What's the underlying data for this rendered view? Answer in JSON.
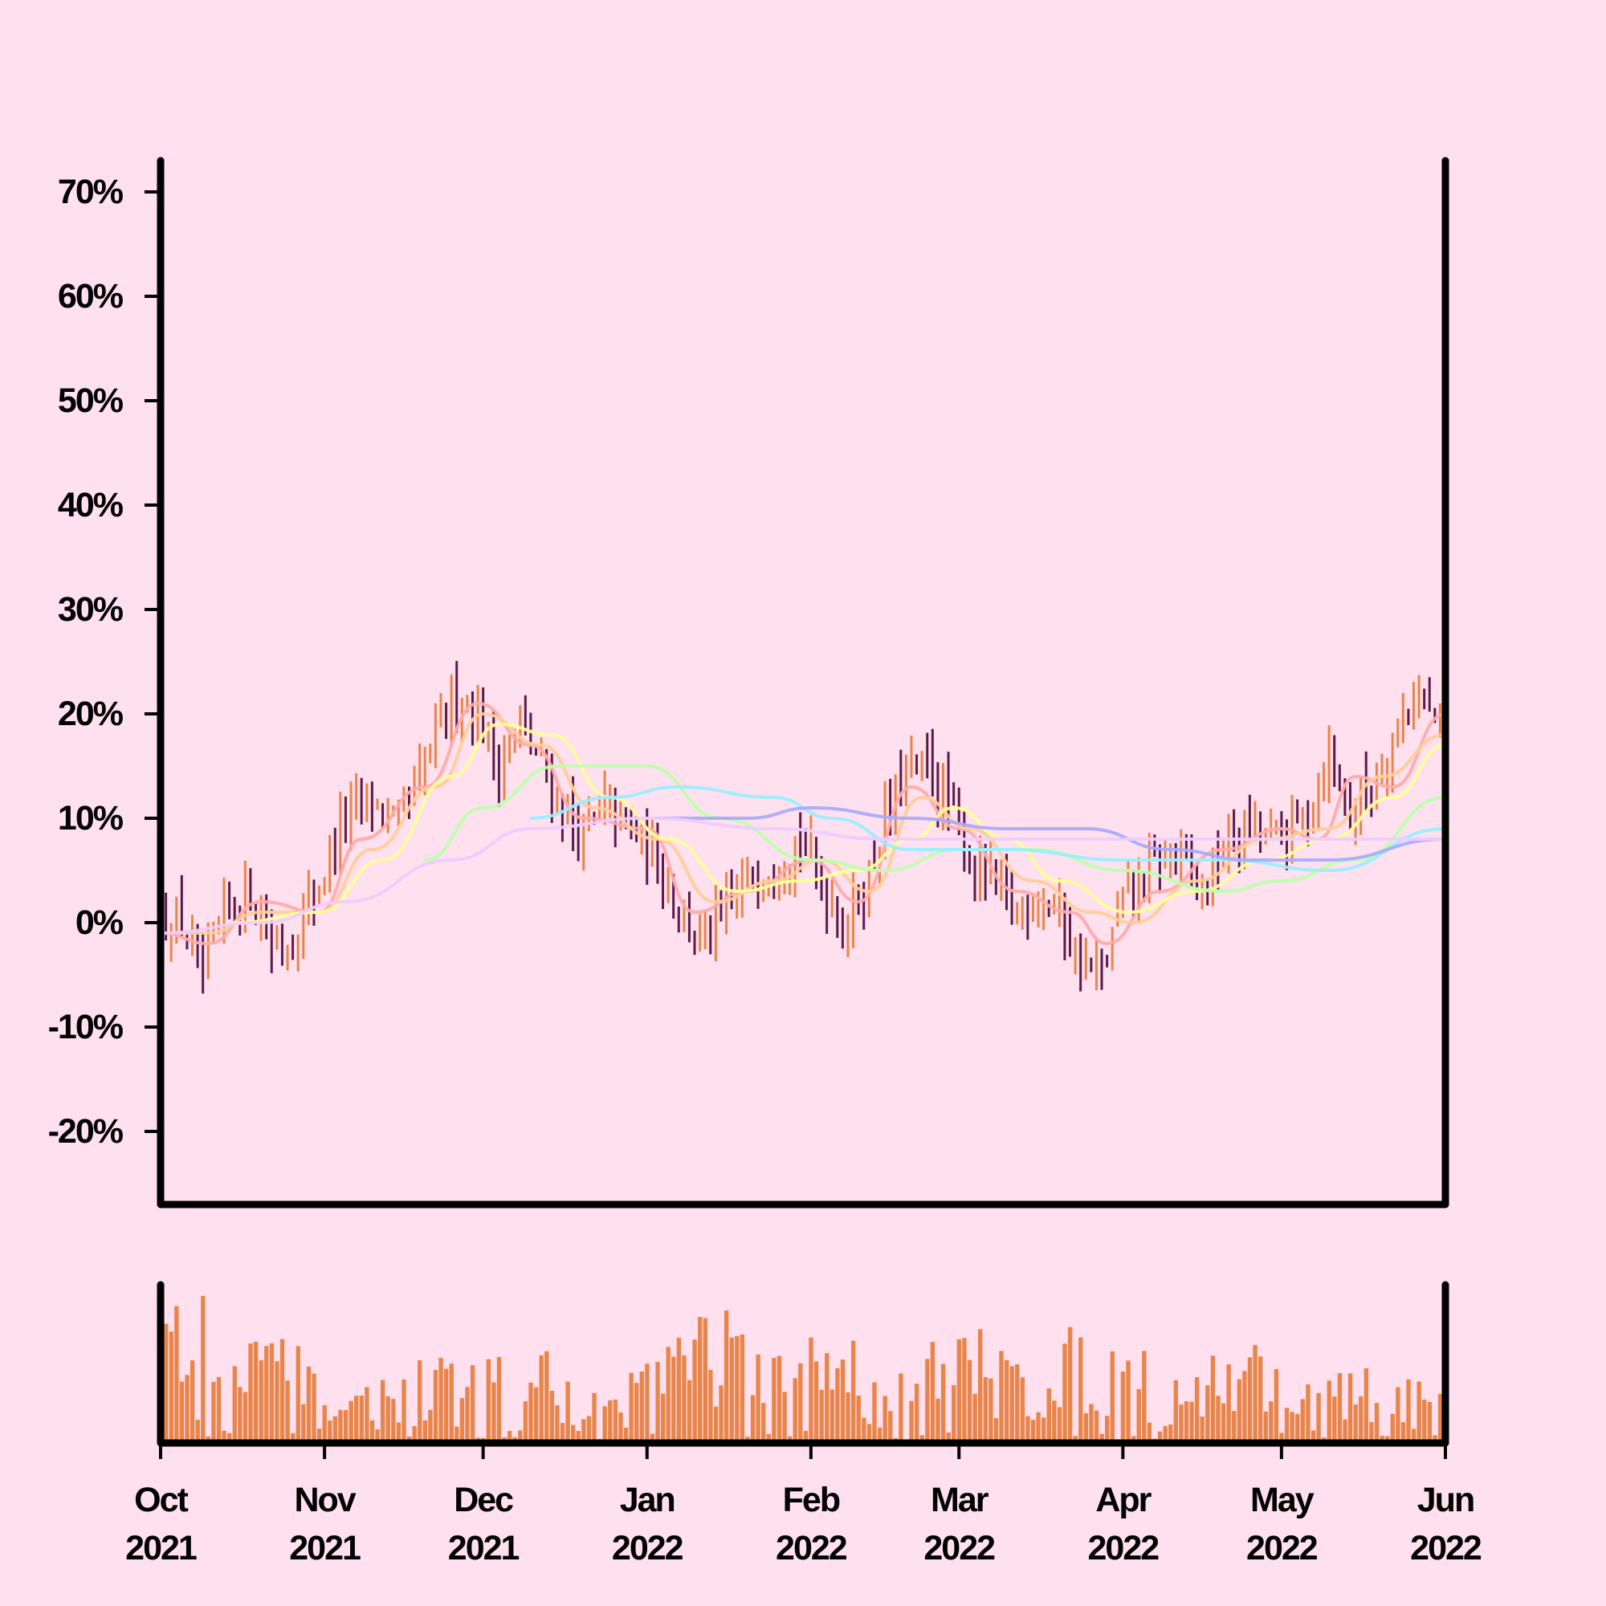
{
  "chart_data": [
    {
      "type": "ohlc",
      "title": "",
      "xlabel": "",
      "ylabel": "",
      "y_unit": "percent",
      "ylim": [
        -27,
        73
      ],
      "xlim": [
        "2021-10-01",
        "2022-06-01"
      ],
      "yticks": [
        {
          "value": 70,
          "label": "70%"
        },
        {
          "value": 60,
          "label": "60%"
        },
        {
          "value": 50,
          "label": "50%"
        },
        {
          "value": 40,
          "label": "40%"
        },
        {
          "value": 30,
          "label": "30%"
        },
        {
          "value": 20,
          "label": "20%"
        },
        {
          "value": 10,
          "label": "10%"
        },
        {
          "value": 0,
          "label": "0%"
        },
        {
          "value": -10,
          "label": "-10%"
        },
        {
          "value": -20,
          "label": "-20%"
        }
      ],
      "xticks": [
        {
          "date": "2021-10-01",
          "month": "Oct",
          "year": "2021"
        },
        {
          "date": "2021-11-01",
          "month": "Nov",
          "year": "2021"
        },
        {
          "date": "2021-12-01",
          "month": "Dec",
          "year": "2021"
        },
        {
          "date": "2022-01-01",
          "month": "Jan",
          "year": "2022"
        },
        {
          "date": "2022-02-01",
          "month": "Feb",
          "year": "2022"
        },
        {
          "date": "2022-03-01",
          "month": "Mar",
          "year": "2022"
        },
        {
          "date": "2022-04-01",
          "month": "Apr",
          "year": "2022"
        },
        {
          "date": "2022-05-01",
          "month": "May",
          "year": "2022"
        },
        {
          "date": "2022-06-01",
          "month": "Jun",
          "year": "2022"
        }
      ],
      "grid": false,
      "legend": "none",
      "colors": {
        "up": "#e8854a",
        "down": "#5c1a4a",
        "axis": "#000000"
      },
      "price_anchors": [
        [
          "2021-10-01",
          0
        ],
        [
          "2021-10-05",
          0
        ],
        [
          "2021-10-09",
          -6
        ],
        [
          "2021-10-13",
          1
        ],
        [
          "2021-10-18",
          3
        ],
        [
          "2021-10-22",
          -2
        ],
        [
          "2021-10-26",
          -2
        ],
        [
          "2021-10-31",
          4
        ],
        [
          "2021-11-05",
          10
        ],
        [
          "2021-11-10",
          12
        ],
        [
          "2021-11-14",
          9
        ],
        [
          "2021-11-18",
          12
        ],
        [
          "2021-11-22",
          18
        ],
        [
          "2021-11-26",
          22
        ],
        [
          "2021-11-30",
          20
        ],
        [
          "2021-12-04",
          15
        ],
        [
          "2021-12-08",
          19
        ],
        [
          "2021-12-12",
          15
        ],
        [
          "2021-12-16",
          11
        ],
        [
          "2021-12-20",
          8
        ],
        [
          "2021-12-24",
          11
        ],
        [
          "2021-12-29",
          9
        ],
        [
          "2022-01-03",
          6
        ],
        [
          "2022-01-07",
          2
        ],
        [
          "2022-01-11",
          -2
        ],
        [
          "2022-01-15",
          0
        ],
        [
          "2022-01-20",
          4
        ],
        [
          "2022-01-25",
          6
        ],
        [
          "2022-01-30",
          8
        ],
        [
          "2022-02-03",
          4
        ],
        [
          "2022-02-07",
          0
        ],
        [
          "2022-02-11",
          3
        ],
        [
          "2022-02-15",
          10
        ],
        [
          "2022-02-19",
          14
        ],
        [
          "2022-02-23",
          15
        ],
        [
          "2022-02-27",
          11
        ],
        [
          "2022-03-03",
          6
        ],
        [
          "2022-03-07",
          4
        ],
        [
          "2022-03-12",
          1
        ],
        [
          "2022-03-16",
          3
        ],
        [
          "2022-03-20",
          1
        ],
        [
          "2022-03-24",
          -4
        ],
        [
          "2022-03-28",
          -5
        ],
        [
          "2022-04-01",
          2
        ],
        [
          "2022-04-06",
          5
        ],
        [
          "2022-04-11",
          7
        ],
        [
          "2022-04-16",
          3
        ],
        [
          "2022-04-21",
          8
        ],
        [
          "2022-04-26",
          9
        ],
        [
          "2022-05-01",
          8
        ],
        [
          "2022-05-06",
          11
        ],
        [
          "2022-05-10",
          16
        ],
        [
          "2022-05-14",
          11
        ],
        [
          "2022-05-18",
          13
        ],
        [
          "2022-05-22",
          18
        ],
        [
          "2022-05-26",
          22
        ],
        [
          "2022-06-01",
          18
        ]
      ],
      "moving_averages": [
        {
          "color": "#ffaaaa",
          "points": [
            [
              "2021-10-01",
              -1
            ],
            [
              "2021-10-10",
              -2
            ],
            [
              "2021-10-20",
              2
            ],
            [
              "2021-10-31",
              1
            ],
            [
              "2021-11-08",
              8
            ],
            [
              "2021-11-20",
              13
            ],
            [
              "2021-11-30",
              21
            ],
            [
              "2021-12-10",
              17
            ],
            [
              "2021-12-20",
              10
            ],
            [
              "2022-01-01",
              9
            ],
            [
              "2022-01-10",
              1
            ],
            [
              "2022-01-20",
              3
            ],
            [
              "2022-02-01",
              6
            ],
            [
              "2022-02-10",
              2
            ],
            [
              "2022-02-20",
              13
            ],
            [
              "2022-03-01",
              9
            ],
            [
              "2022-03-12",
              3
            ],
            [
              "2022-03-22",
              1
            ],
            [
              "2022-03-29",
              -2
            ],
            [
              "2022-04-08",
              3
            ],
            [
              "2022-04-20",
              7
            ],
            [
              "2022-05-01",
              9
            ],
            [
              "2022-05-08",
              8
            ],
            [
              "2022-05-15",
              14
            ],
            [
              "2022-05-22",
              13
            ],
            [
              "2022-06-01",
              20
            ]
          ]
        },
        {
          "color": "#ffcc99",
          "points": [
            [
              "2021-10-01",
              -1
            ],
            [
              "2021-10-10",
              -1
            ],
            [
              "2021-10-20",
              1
            ],
            [
              "2021-10-31",
              1
            ],
            [
              "2021-11-10",
              7
            ],
            [
              "2021-11-22",
              13
            ],
            [
              "2021-12-01",
              20
            ],
            [
              "2021-12-12",
              17
            ],
            [
              "2021-12-22",
              11
            ],
            [
              "2022-01-03",
              8
            ],
            [
              "2022-01-14",
              2
            ],
            [
              "2022-01-25",
              4
            ],
            [
              "2022-02-03",
              6
            ],
            [
              "2022-02-12",
              3
            ],
            [
              "2022-02-22",
              12
            ],
            [
              "2022-03-03",
              9
            ],
            [
              "2022-03-15",
              4
            ],
            [
              "2022-03-26",
              1
            ],
            [
              "2022-04-03",
              0
            ],
            [
              "2022-04-15",
              4
            ],
            [
              "2022-04-28",
              8
            ],
            [
              "2022-05-10",
              9
            ],
            [
              "2022-05-20",
              14
            ],
            [
              "2022-06-01",
              18
            ]
          ]
        },
        {
          "color": "#ffff99",
          "points": [
            [
              "2021-10-15",
              0
            ],
            [
              "2021-10-31",
              1
            ],
            [
              "2021-11-12",
              6
            ],
            [
              "2021-11-25",
              14
            ],
            [
              "2021-12-04",
              19
            ],
            [
              "2021-12-14",
              18
            ],
            [
              "2021-12-25",
              12
            ],
            [
              "2022-01-05",
              8
            ],
            [
              "2022-01-18",
              3
            ],
            [
              "2022-01-30",
              4
            ],
            [
              "2022-02-10",
              5
            ],
            [
              "2022-02-20",
              8
            ],
            [
              "2022-02-28",
              11
            ],
            [
              "2022-03-10",
              8
            ],
            [
              "2022-03-20",
              4
            ],
            [
              "2022-04-02",
              1
            ],
            [
              "2022-04-15",
              3
            ],
            [
              "2022-04-28",
              6
            ],
            [
              "2022-05-10",
              8
            ],
            [
              "2022-05-22",
              12
            ],
            [
              "2022-06-01",
              17
            ]
          ]
        },
        {
          "color": "#bbffaa",
          "points": [
            [
              "2021-11-20",
              6
            ],
            [
              "2021-12-01",
              11
            ],
            [
              "2021-12-15",
              15
            ],
            [
              "2022-01-01",
              15
            ],
            [
              "2022-01-15",
              10
            ],
            [
              "2022-02-01",
              6
            ],
            [
              "2022-02-15",
              5
            ],
            [
              "2022-03-01",
              7
            ],
            [
              "2022-03-15",
              7
            ],
            [
              "2022-04-01",
              5
            ],
            [
              "2022-04-20",
              3
            ],
            [
              "2022-05-01",
              4
            ],
            [
              "2022-05-15",
              6
            ],
            [
              "2022-06-01",
              12
            ]
          ]
        },
        {
          "color": "#99eeff",
          "points": [
            [
              "2021-12-10",
              10
            ],
            [
              "2021-12-25",
              12
            ],
            [
              "2022-01-07",
              13
            ],
            [
              "2022-01-25",
              12
            ],
            [
              "2022-02-05",
              10
            ],
            [
              "2022-02-20",
              7
            ],
            [
              "2022-03-10",
              7
            ],
            [
              "2022-04-01",
              6
            ],
            [
              "2022-04-20",
              6
            ],
            [
              "2022-05-10",
              5
            ],
            [
              "2022-06-01",
              9
            ]
          ]
        },
        {
          "color": "#aaaaff",
          "points": [
            [
              "2022-01-01",
              10
            ],
            [
              "2022-01-20",
              10
            ],
            [
              "2022-02-01",
              11
            ],
            [
              "2022-02-20",
              10
            ],
            [
              "2022-03-10",
              9
            ],
            [
              "2022-03-25",
              9
            ],
            [
              "2022-04-10",
              7
            ],
            [
              "2022-04-25",
              6
            ],
            [
              "2022-05-10",
              6
            ],
            [
              "2022-06-01",
              8
            ]
          ]
        },
        {
          "color": "#eeccff",
          "points": [
            [
              "2021-10-01",
              -1
            ],
            [
              "2021-10-20",
              0
            ],
            [
              "2021-11-05",
              2
            ],
            [
              "2021-11-25",
              6
            ],
            [
              "2021-12-10",
              9
            ],
            [
              "2022-01-01",
              10
            ],
            [
              "2022-01-25",
              9
            ],
            [
              "2022-02-15",
              8
            ],
            [
              "2022-03-15",
              8
            ],
            [
              "2022-04-15",
              8
            ],
            [
              "2022-05-15",
              8
            ],
            [
              "2022-06-01",
              8
            ]
          ]
        }
      ]
    },
    {
      "type": "bar",
      "title": "",
      "xlabel": "",
      "ylabel": "",
      "xlim": [
        "2021-10-01",
        "2022-06-01"
      ],
      "color": "#e8854a",
      "volume_profile": [
        [
          "2021-10-01",
          0.9
        ],
        [
          "2021-10-08",
          0.8
        ],
        [
          "2021-10-15",
          0.45
        ],
        [
          "2021-10-22",
          0.7
        ],
        [
          "2021-10-29",
          0.35
        ],
        [
          "2021-11-05",
          0.3
        ],
        [
          "2021-11-12",
          0.35
        ],
        [
          "2021-11-19",
          0.45
        ],
        [
          "2021-11-26",
          0.4
        ],
        [
          "2021-12-03",
          0.5
        ],
        [
          "2021-12-10",
          0.55
        ],
        [
          "2021-12-17",
          0.3
        ],
        [
          "2021-12-24",
          0.25
        ],
        [
          "2022-01-01",
          0.6
        ],
        [
          "2022-01-08",
          0.7
        ],
        [
          "2022-01-15",
          0.75
        ],
        [
          "2022-01-22",
          0.4
        ],
        [
          "2022-01-29",
          0.55
        ],
        [
          "2022-02-05",
          0.7
        ],
        [
          "2022-02-12",
          0.35
        ],
        [
          "2022-02-19",
          0.5
        ],
        [
          "2022-02-26",
          0.55
        ],
        [
          "2022-03-05",
          0.6
        ],
        [
          "2022-03-12",
          0.45
        ],
        [
          "2022-03-19",
          0.55
        ],
        [
          "2022-03-26",
          0.65
        ],
        [
          "2022-04-02",
          0.5
        ],
        [
          "2022-04-09",
          0.4
        ],
        [
          "2022-04-16",
          0.45
        ],
        [
          "2022-04-23",
          0.6
        ],
        [
          "2022-04-30",
          0.45
        ],
        [
          "2022-05-07",
          0.3
        ],
        [
          "2022-05-14",
          0.4
        ],
        [
          "2022-05-21",
          0.35
        ],
        [
          "2022-06-01",
          0.3
        ]
      ]
    }
  ]
}
